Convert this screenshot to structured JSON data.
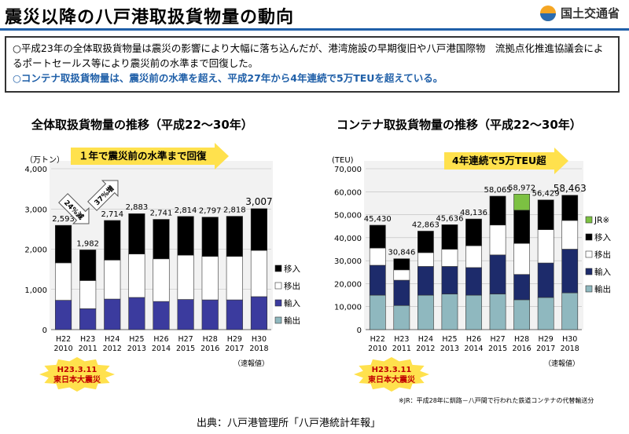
{
  "header": {
    "title": "震災以降の八戸港取扱貨物量の動向",
    "logo_text": "国土交通省"
  },
  "summary": {
    "line1": "○平成23年の全体取扱貨物量は震災の影響により大幅に落ち込んだが、港湾施設の早期復旧や八戸港国際物　流拠点化推進協議会によるポートセールス等により震災前の水準まで回復した。",
    "line2": "○コンテナ取扱貨物量は、震災前の水準を超え、平成27年から4年連続で5万TEUを超えている。"
  },
  "footer": {
    "source": "出典：八戸港管理所「八戸港統計年報」",
    "note": "※JR：平成28年に釧路－八戸間で行われた鉄道コンテナの代替輸送分"
  },
  "chart_data": [
    {
      "type": "bar",
      "stacked": true,
      "title": "全体取扱貨物量の推移（平成22～30年）",
      "unit": "（万トン）",
      "categories": [
        "H22\n2010",
        "H23\n2011",
        "H24\n2012",
        "H25\n2013",
        "H26\n2014",
        "H27\n2015",
        "H28\n2016",
        "H29\n2017",
        "H30\n2018"
      ],
      "ylim": [
        0,
        4000
      ],
      "yticks": [
        "0",
        "1,000",
        "2,000",
        "3,000",
        "4,000"
      ],
      "totals": [
        "2,593",
        "1,982",
        "2,714",
        "2,883",
        "2,741",
        "2,814",
        "2,797",
        "2,818",
        "3,007"
      ],
      "total_values": [
        2593,
        1982,
        2714,
        2883,
        2741,
        2814,
        2797,
        2818,
        3007
      ],
      "series": [
        {
          "name": "輸出",
          "color": "#8fb8bf",
          "values": [
            0,
            0,
            0,
            0,
            0,
            0,
            0,
            0,
            0
          ]
        },
        {
          "name": "輸入",
          "color": "#3b3b9e",
          "values": [
            730,
            520,
            760,
            800,
            700,
            750,
            740,
            740,
            820
          ]
        },
        {
          "name": "移出",
          "color": "#ffffff",
          "values": [
            930,
            700,
            970,
            1080,
            1060,
            1100,
            1080,
            1080,
            1150
          ]
        },
        {
          "name": "移入",
          "color": "#000000",
          "values": [
            933,
            762,
            984,
            1003,
            981,
            964,
            977,
            998,
            1037
          ]
        }
      ],
      "callout": "１年で震災前の水準まで回復",
      "arrow_labels": [
        "24%減",
        "37%増"
      ],
      "preliminary": "（速報値）",
      "badge": [
        "H23.3.11",
        "東日本大震災"
      ]
    },
    {
      "type": "bar",
      "stacked": true,
      "title": "コンテナ取扱貨物量の推移（平成22～30年）",
      "unit": "(TEU)",
      "categories": [
        "H22\n2010",
        "H23\n2011",
        "H24\n2012",
        "H25\n2013",
        "H26\n2014",
        "H27\n2015",
        "H28\n2016",
        "H29\n2017",
        "H30\n2018"
      ],
      "ylim": [
        0,
        70000
      ],
      "yticks": [
        "0",
        "10,000",
        "20,000",
        "30,000",
        "40,000",
        "50,000",
        "60,000",
        "70,000"
      ],
      "totals": [
        "45,430",
        "30,846",
        "42,863",
        "45,636",
        "48,136",
        "58,065",
        "58,972",
        "56,429",
        "58,463"
      ],
      "total_values": [
        45430,
        30846,
        42863,
        45636,
        48136,
        58065,
        58972,
        56429,
        58463
      ],
      "series": [
        {
          "name": "輸出",
          "color": "#8fb8bf",
          "values": [
            15000,
            10500,
            15000,
            15500,
            15000,
            15500,
            13000,
            14000,
            16000
          ]
        },
        {
          "name": "輸入",
          "color": "#1d2b6b",
          "values": [
            13000,
            11000,
            12500,
            12000,
            12000,
            17000,
            11000,
            15000,
            19000
          ]
        },
        {
          "name": "移出",
          "color": "#ffffff",
          "values": [
            7500,
            4500,
            6000,
            7500,
            9500,
            13000,
            13500,
            14500,
            12500
          ]
        },
        {
          "name": "移入",
          "color": "#000000",
          "values": [
            9930,
            4846,
            9363,
            10636,
            11636,
            12565,
            14472,
            12929,
            10963
          ]
        },
        {
          "name": "JR※",
          "color": "#7cc142",
          "values": [
            0,
            0,
            0,
            0,
            0,
            0,
            7000,
            0,
            0
          ]
        }
      ],
      "callout": "4年連続で5万TEU超",
      "preliminary": "（速報値）",
      "badge": [
        "H23.3.11",
        "東日本大震災"
      ]
    }
  ]
}
